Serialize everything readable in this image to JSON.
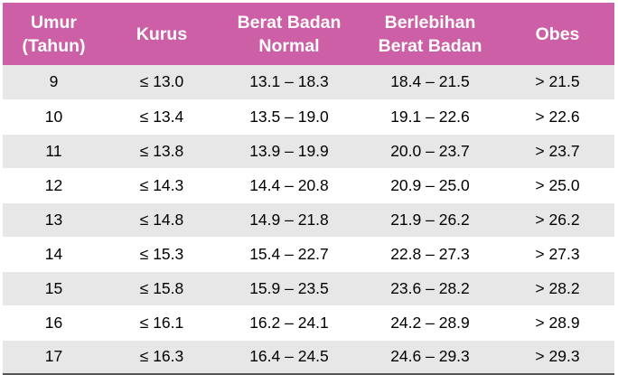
{
  "table": {
    "columns": [
      "Umur (Tahun)",
      "Kurus",
      "Berat Badan Normal",
      "Berlebihan Berat Badan",
      "Obes"
    ],
    "header_lines": [
      [
        "Umur",
        "(Tahun)"
      ],
      [
        "Kurus"
      ],
      [
        "Berat Badan",
        "Normal"
      ],
      [
        "Berlebihan",
        "Berat Badan"
      ],
      [
        "Obes"
      ]
    ],
    "rows": [
      [
        "9",
        "≤ 13.0",
        "13.1 – 18.3",
        "18.4 – 21.5",
        "> 21.5"
      ],
      [
        "10",
        "≤ 13.4",
        "13.5 – 19.0",
        "19.1 – 22.6",
        "> 22.6"
      ],
      [
        "11",
        "≤ 13.8",
        "13.9 – 19.9",
        "20.0 – 23.7",
        "> 23.7"
      ],
      [
        "12",
        "≤ 14.3",
        "14.4 – 20.8",
        "20.9 – 25.0",
        "> 25.0"
      ],
      [
        "13",
        "≤ 14.8",
        "14.9 – 21.8",
        "21.9 – 26.2",
        "> 26.2"
      ],
      [
        "14",
        "≤ 15.3",
        "15.4 – 22.7",
        "22.8 – 27.3",
        "> 27.3"
      ],
      [
        "15",
        "≤ 15.8",
        "15.9 – 23.5",
        "23.6 – 28.2",
        "> 28.2"
      ],
      [
        "16",
        "≤ 16.1",
        "16.2 – 24.1",
        "24.2 – 28.9",
        "> 28.9"
      ],
      [
        "17",
        "≤ 16.3",
        "16.4 – 24.5",
        "24.6 – 29.3",
        "> 29.3"
      ]
    ]
  },
  "colors": {
    "header_background": "#cc5fa5",
    "header_text": "#ffffff",
    "row_shade": "#e7e7e7",
    "row_plain": "#ffffff",
    "bottom_rule": "#555555"
  }
}
